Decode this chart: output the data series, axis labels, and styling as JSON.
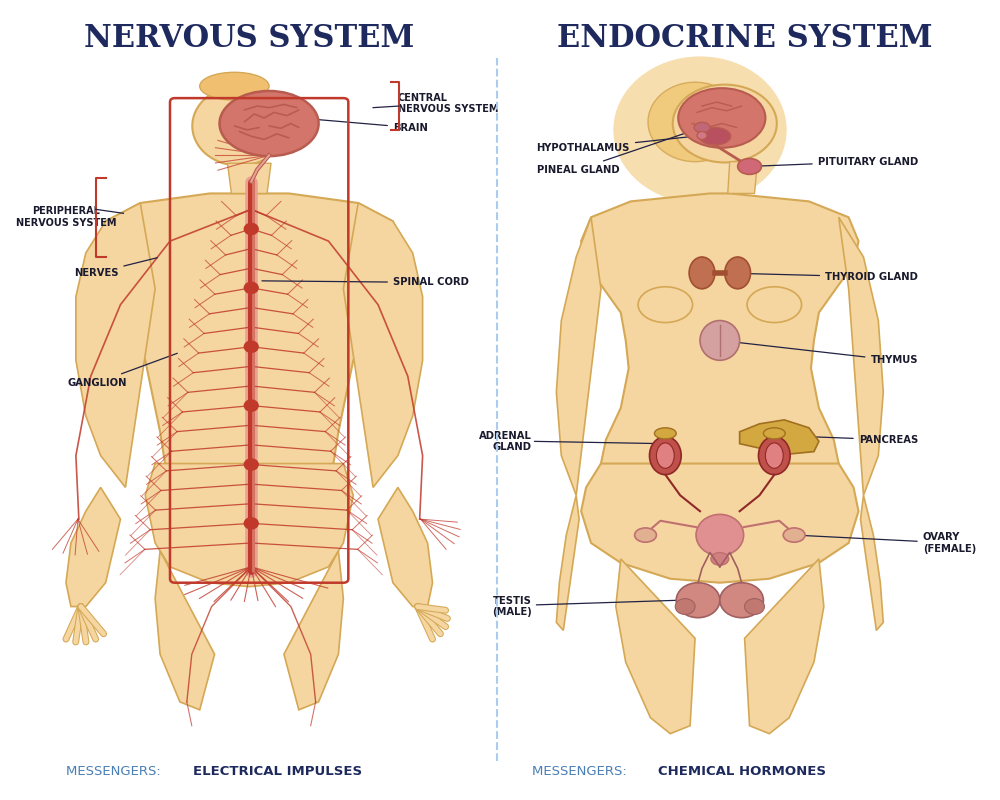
{
  "title_left": "NERVOUS SYSTEM",
  "title_right": "ENDOCRINE SYSTEM",
  "messenger_left_prefix": "MESSENGERS: ",
  "messenger_left_bold": "ELECTRICAL IMPULSES",
  "messenger_right_prefix": "MESSENGERS: ",
  "messenger_right_bold": "CHEMICAL HORMONES",
  "title_color": "#1e2a5e",
  "messenger_prefix_color": "#4a7fb5",
  "messenger_bold_color": "#1e2a5e",
  "divider_color": "#aaccee",
  "background_color": "#ffffff",
  "skin_color": "#f5d5a0",
  "skin_outline_color": "#d4a855",
  "nerve_color": "#c0392b",
  "nerve_light": "#e8a090",
  "brain_color": "#d4756b",
  "brain_outline": "#b85c50",
  "label_color": "#1a1a2e",
  "box_outline_color": "#c0392b",
  "kidney_color": "#c0504a",
  "thyroid_color": "#c07050",
  "thymus_color": "#d4a0a0",
  "pancreas_color": "#d4a840",
  "repro_color": "#e09090",
  "yellow_organ": "#d4a840"
}
